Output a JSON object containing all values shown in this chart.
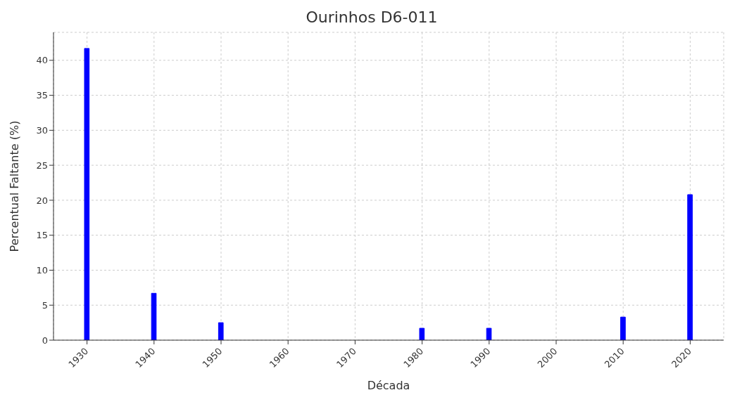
{
  "chart_data": {
    "type": "bar",
    "title": "Ourinhos D6-011",
    "xlabel": "Década",
    "ylabel": "Percentual Faltante (%)",
    "x": [
      1930,
      1940,
      1950,
      1960,
      1970,
      1980,
      1990,
      2000,
      2010,
      2020
    ],
    "values": [
      41.7,
      6.7,
      2.5,
      0,
      0,
      1.7,
      1.7,
      0,
      3.3,
      20.8
    ],
    "color": "#0000ff",
    "xlim": [
      1925,
      2025
    ],
    "xticks": [
      1930,
      1940,
      1950,
      1960,
      1970,
      1980,
      1990,
      2000,
      2010,
      2020
    ],
    "ylim": [
      0,
      44
    ],
    "yticks": [
      0,
      5,
      10,
      15,
      20,
      25,
      30,
      35,
      40
    ],
    "grid": true
  }
}
